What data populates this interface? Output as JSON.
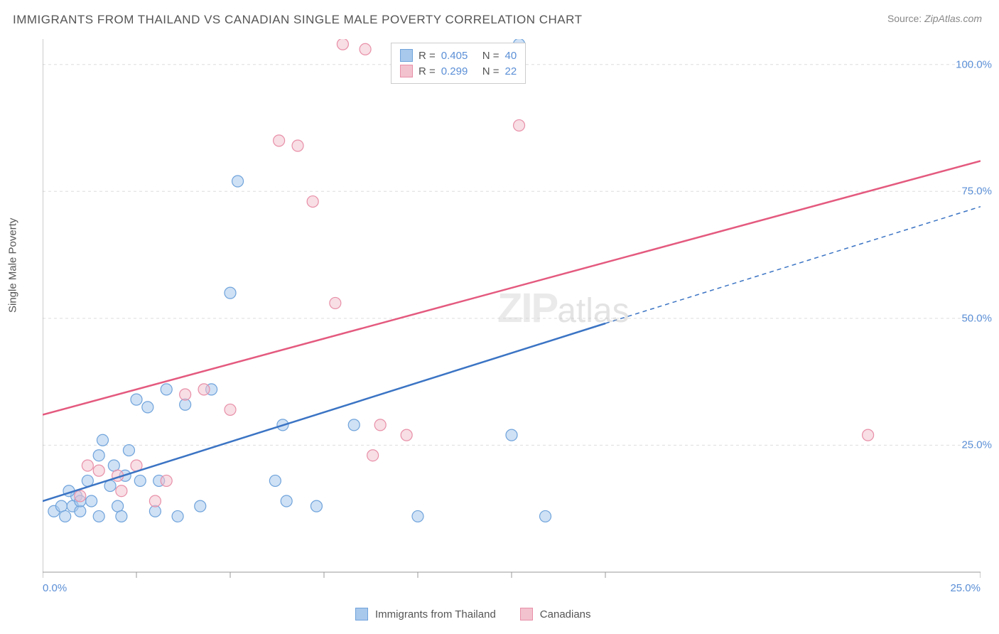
{
  "title": "IMMIGRANTS FROM THAILAND VS CANADIAN SINGLE MALE POVERTY CORRELATION CHART",
  "source_label": "Source:",
  "source_value": "ZipAtlas.com",
  "y_axis_label": "Single Male Poverty",
  "watermark_zip": "ZIP",
  "watermark_atlas": "atlas",
  "chart": {
    "type": "scatter",
    "xlim": [
      0,
      25
    ],
    "ylim": [
      0,
      105
    ],
    "x_ticks": [
      0,
      2.5,
      5,
      7.5,
      10,
      12.5,
      15,
      25
    ],
    "x_tick_labels": {
      "0": "0.0%",
      "25": "25.0%"
    },
    "y_ticks": [
      25,
      50,
      75,
      100
    ],
    "y_tick_labels": {
      "25": "25.0%",
      "50": "50.0%",
      "75": "75.0%",
      "100": "100.0%"
    },
    "grid_color": "#dddddd",
    "axis_color": "#999999",
    "background_color": "#ffffff",
    "marker_radius": 8,
    "marker_opacity": 0.55,
    "series": [
      {
        "name": "Immigrants from Thailand",
        "color_fill": "#a8c8ec",
        "color_stroke": "#6fa3db",
        "r_label": "R =",
        "r_value": "0.405",
        "n_label": "N =",
        "n_value": "40",
        "trend": {
          "x1": 0,
          "y1": 14,
          "x2": 15,
          "y2": 49,
          "x2_ext": 25,
          "y2_ext": 72,
          "color": "#3b74c4",
          "width": 2.5
        },
        "points": [
          [
            0.3,
            12
          ],
          [
            0.5,
            13
          ],
          [
            0.6,
            11
          ],
          [
            0.8,
            13
          ],
          [
            0.9,
            15
          ],
          [
            1.0,
            12
          ],
          [
            1.2,
            18
          ],
          [
            1.3,
            14
          ],
          [
            1.5,
            23
          ],
          [
            1.5,
            11
          ],
          [
            1.6,
            26
          ],
          [
            1.8,
            17
          ],
          [
            1.9,
            21
          ],
          [
            2.0,
            13
          ],
          [
            2.1,
            11
          ],
          [
            2.3,
            24
          ],
          [
            2.5,
            34
          ],
          [
            2.6,
            18
          ],
          [
            2.8,
            32.5
          ],
          [
            3.0,
            12
          ],
          [
            3.1,
            18
          ],
          [
            3.3,
            36
          ],
          [
            3.6,
            11
          ],
          [
            3.8,
            33
          ],
          [
            4.5,
            36
          ],
          [
            4.2,
            13
          ],
          [
            5.0,
            55
          ],
          [
            5.2,
            77
          ],
          [
            6.2,
            18
          ],
          [
            6.4,
            29
          ],
          [
            6.5,
            14
          ],
          [
            7.3,
            13
          ],
          [
            8.3,
            29
          ],
          [
            10.0,
            11
          ],
          [
            12.5,
            27
          ],
          [
            12.7,
            104
          ],
          [
            13.4,
            11
          ],
          [
            1.0,
            14
          ],
          [
            0.7,
            16
          ],
          [
            2.2,
            19
          ]
        ]
      },
      {
        "name": "Canadians",
        "color_fill": "#f3c2cf",
        "color_stroke": "#e88fa8",
        "r_label": "R =",
        "r_value": "0.299",
        "n_label": "N =",
        "n_value": "22",
        "trend": {
          "x1": 0,
          "y1": 31,
          "x2": 25,
          "y2": 81,
          "color": "#e45a7f",
          "width": 2.5
        },
        "points": [
          [
            1.0,
            15
          ],
          [
            1.2,
            21
          ],
          [
            1.5,
            20
          ],
          [
            2.0,
            19
          ],
          [
            2.1,
            16
          ],
          [
            2.5,
            21
          ],
          [
            3.0,
            14
          ],
          [
            3.3,
            18
          ],
          [
            3.8,
            35
          ],
          [
            4.3,
            36
          ],
          [
            5.0,
            32
          ],
          [
            6.3,
            85
          ],
          [
            6.8,
            84
          ],
          [
            7.2,
            73
          ],
          [
            7.8,
            53
          ],
          [
            8.0,
            104
          ],
          [
            8.6,
            103
          ],
          [
            8.8,
            23
          ],
          [
            9.0,
            29
          ],
          [
            9.7,
            27
          ],
          [
            12.7,
            88
          ],
          [
            22.0,
            27
          ]
        ]
      }
    ]
  },
  "legend_bottom": [
    {
      "label": "Immigrants from Thailand",
      "fill": "#a8c8ec",
      "stroke": "#6fa3db"
    },
    {
      "label": "Canadians",
      "fill": "#f3c2cf",
      "stroke": "#e88fa8"
    }
  ]
}
